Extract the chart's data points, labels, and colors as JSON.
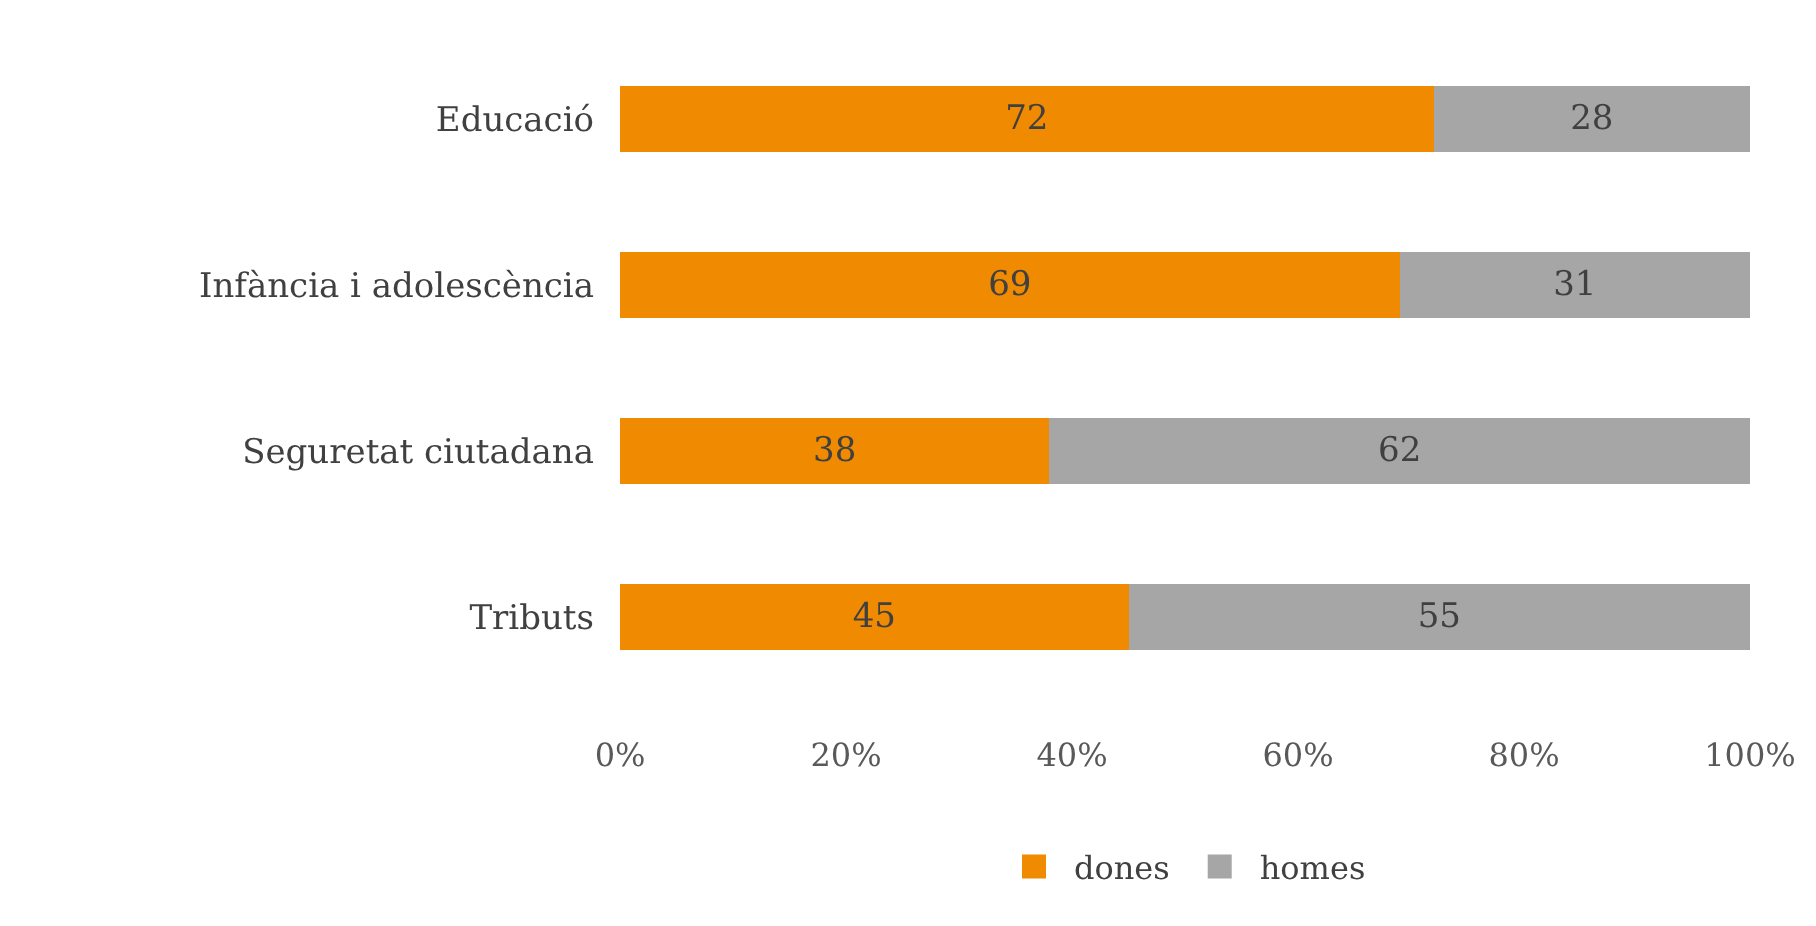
{
  "chart_data": {
    "type": "bar",
    "orientation": "horizontal",
    "stacked": true,
    "categories": [
      "Educació",
      "Infància i adolescència",
      "Seguretat ciutadana",
      "Tributs"
    ],
    "series": [
      {
        "name": "dones",
        "color": "#f08a00",
        "values": [
          72,
          69,
          38,
          45
        ]
      },
      {
        "name": "homes",
        "color": "#a6a6a6",
        "values": [
          28,
          31,
          62,
          55
        ]
      }
    ],
    "xlim": [
      0,
      100
    ],
    "xticks": [
      {
        "value": 0,
        "label": "0%"
      },
      {
        "value": 20,
        "label": "20%"
      },
      {
        "value": 40,
        "label": "40%"
      },
      {
        "value": 60,
        "label": "60%"
      },
      {
        "value": 80,
        "label": "80%"
      },
      {
        "value": 100,
        "label": "100%"
      }
    ],
    "data_labels": true,
    "grid": false,
    "legend": "bottom"
  }
}
